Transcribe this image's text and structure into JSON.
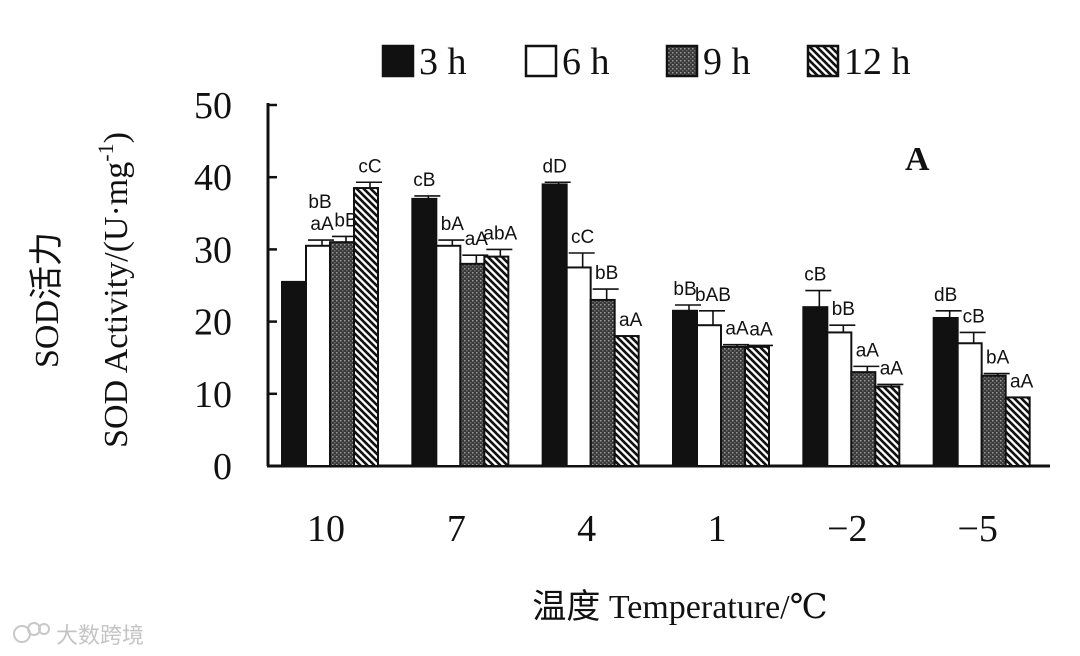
{
  "chart_data": {
    "type": "bar",
    "panel_label": "A",
    "categories": [
      "10",
      "7",
      "4",
      "1",
      "−2",
      "−5"
    ],
    "ylabel_cn": "SOD活力",
    "ylabel_en": "SOD Activity/(U·mg",
    "ylabel_sup": "-1",
    "ylabel_close": ")",
    "xlabel": "温度 Temperature/℃",
    "ylim": [
      0,
      50
    ],
    "yticks": [
      "0",
      "10",
      "20",
      "30",
      "40",
      "50"
    ],
    "grid": false,
    "legend_position": "top",
    "series": [
      {
        "name": "3 h",
        "pattern": "solid-black",
        "values": [
          25.5,
          37,
          39,
          21.5,
          22,
          20.5
        ],
        "errors": [
          0,
          0.4,
          0.3,
          0.8,
          2.3,
          1.0
        ],
        "labels": [
          "",
          "cB",
          "dD",
          "bB",
          "cB",
          "dB"
        ]
      },
      {
        "name": "6 h",
        "pattern": "white",
        "values": [
          30.5,
          30.5,
          27.5,
          19.5,
          18.5,
          17
        ],
        "errors": [
          0.8,
          0.8,
          2.0,
          2.0,
          1.0,
          1.5
        ],
        "labels": [
          "aA",
          "bA",
          "cC",
          "bAB",
          "bB",
          "cB"
        ]
      },
      {
        "name": "9 h",
        "pattern": "stipple",
        "values": [
          31,
          28,
          23,
          16.5,
          13,
          12.5
        ],
        "errors": [
          0.8,
          1.2,
          1.5,
          0.3,
          0.8,
          0.3
        ],
        "labels": [
          "bB",
          "aA",
          "bB",
          "aA",
          "aA",
          "bA"
        ]
      },
      {
        "name": "12 h",
        "pattern": "hatch",
        "values": [
          38.5,
          29,
          18,
          16.5,
          11,
          9.5
        ],
        "errors": [
          0.8,
          1.0,
          0,
          0.2,
          0.3,
          0
        ],
        "labels": [
          "cC",
          "abA",
          "aA",
          "aA",
          "aA",
          "aA"
        ]
      }
    ],
    "extra_labels": [
      {
        "category": 0,
        "text": "bB"
      }
    ]
  },
  "watermark": "大数跨境"
}
